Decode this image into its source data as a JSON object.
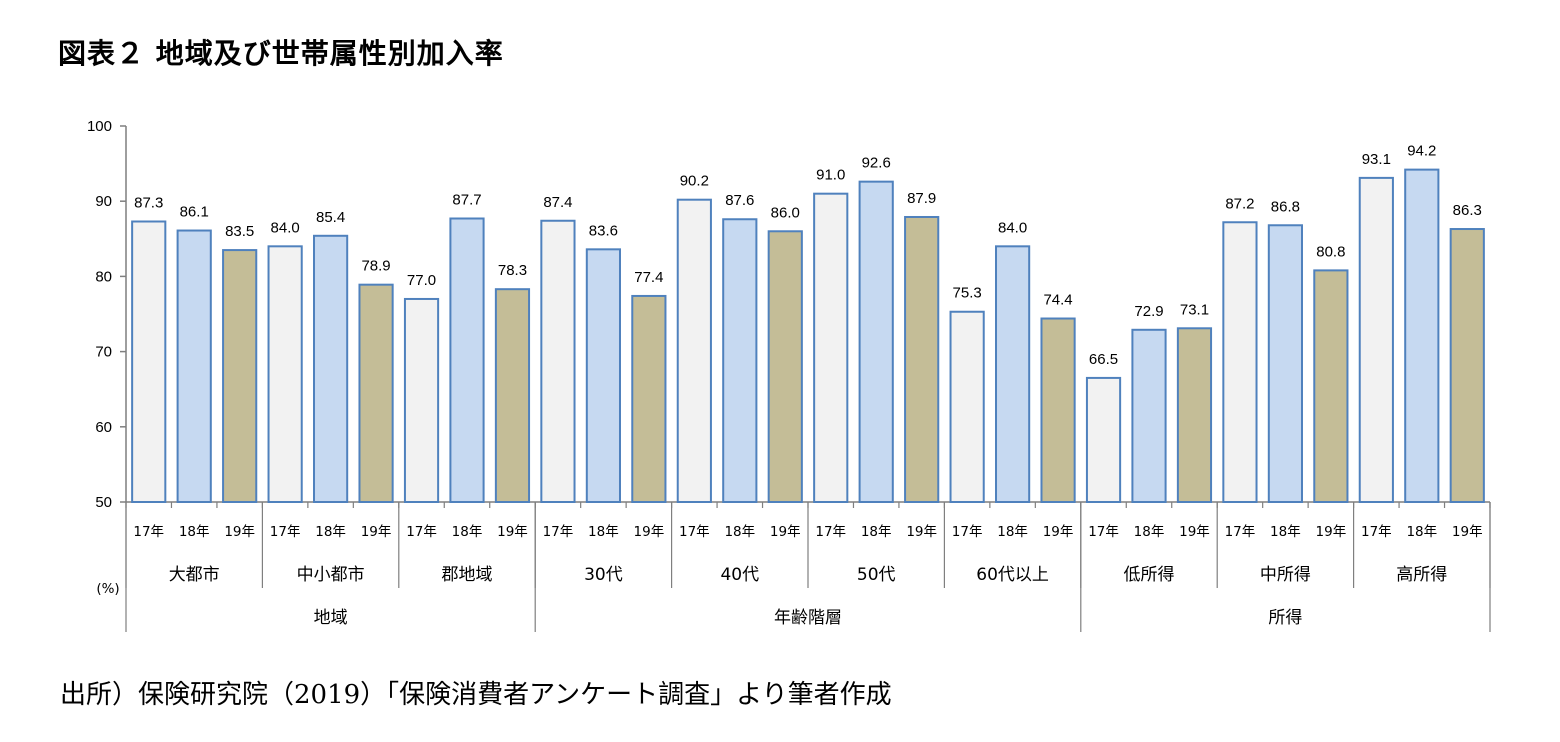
{
  "title": "図表２ 地域及び世帯属性別加入率",
  "source": "出所）保険研究院（2019）「保険消費者アンケート調査」より筆者作成",
  "colors": {
    "y17": "#f2f2f2",
    "y18": "#c6d9f1",
    "y19": "#c4bd97",
    "stroke": "#4f81bd",
    "axis": "#7f7f7f"
  },
  "chart_data": {
    "type": "bar",
    "ylim": [
      50,
      100
    ],
    "yticks": [
      50,
      60,
      70,
      80,
      90,
      100
    ],
    "unit_label": "(%)",
    "series_labels": [
      "17年",
      "18年",
      "19年"
    ],
    "level1": [
      "大都市",
      "中小都市",
      "郡地域",
      "30代",
      "40代",
      "50代",
      "60代以上",
      "低所得",
      "中所得",
      "高所得"
    ],
    "level2": [
      {
        "label": "地域",
        "span": 3
      },
      {
        "label": "年齢階層",
        "span": 4
      },
      {
        "label": "所得",
        "span": 3
      }
    ],
    "values": [
      [
        87.3,
        86.1,
        83.5
      ],
      [
        84.0,
        85.4,
        78.9
      ],
      [
        77.0,
        87.7,
        78.3
      ],
      [
        87.4,
        83.6,
        77.4
      ],
      [
        90.2,
        87.6,
        86.0
      ],
      [
        91.0,
        92.6,
        87.9
      ],
      [
        75.3,
        84.0,
        74.4
      ],
      [
        66.5,
        72.9,
        73.1
      ],
      [
        87.2,
        86.8,
        80.8
      ],
      [
        93.1,
        94.2,
        86.3
      ]
    ],
    "grid": false,
    "legend": "none"
  }
}
